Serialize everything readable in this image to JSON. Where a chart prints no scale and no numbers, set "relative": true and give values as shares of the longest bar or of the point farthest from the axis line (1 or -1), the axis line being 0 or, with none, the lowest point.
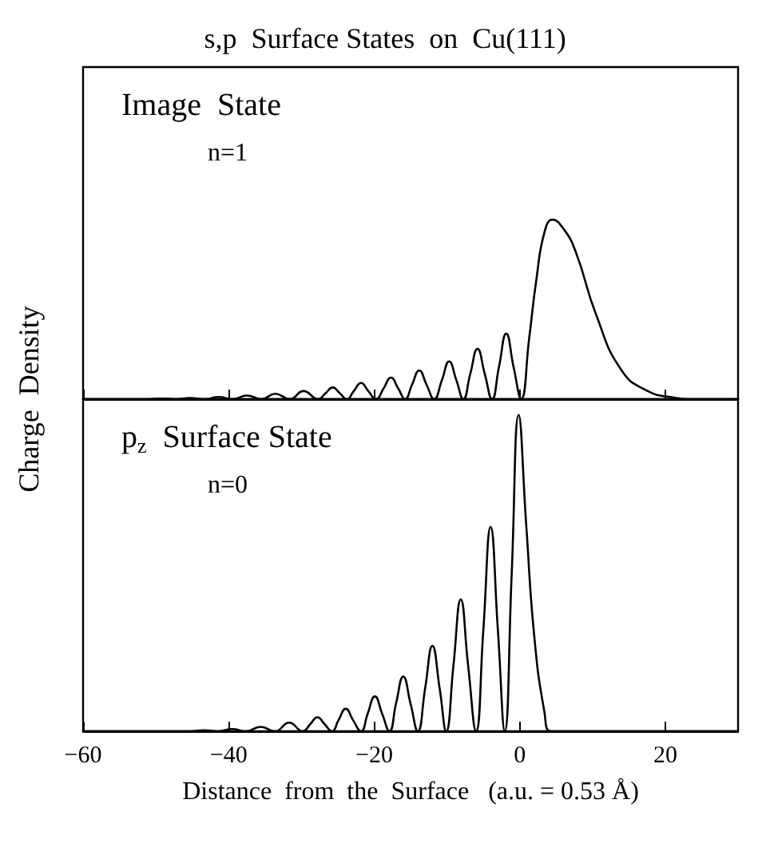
{
  "chart_data": [
    {
      "type": "line",
      "title": "s,p  Surface States  on  Cu(111)",
      "ylabel": "Charge  Density",
      "annotations": [
        "Image  State",
        "n=1"
      ],
      "relative": true,
      "color": "#000000",
      "marker": "none",
      "line_style": "solid",
      "grid": false,
      "tick_labels": false,
      "xlim": [
        -60,
        30
      ],
      "xticks": [
        -60,
        -40,
        -20,
        0,
        20
      ],
      "x": [
        -60,
        -51,
        -49,
        -47.2,
        -45.3,
        -43.3,
        -41.4,
        -39.4,
        -37.5,
        -35.5,
        -33.6,
        -31.6,
        -29.7,
        -27.7,
        -26.7,
        -25.7,
        -24.7,
        -23.75,
        -22.8,
        -21.8,
        -20.8,
        -19.75,
        -18.7,
        -17.7,
        -16.7,
        -15.75,
        -14.8,
        -13.8,
        -12.8,
        -11.75,
        -10.7,
        -9.7,
        -8.7,
        -7.75,
        -6.8,
        -5.8,
        -4.8,
        -3.8,
        -2.85,
        -1.85,
        -0.85,
        0.2,
        1.3,
        2.3,
        3.4,
        4.5,
        6,
        7.7,
        10.5,
        14,
        17.6,
        21,
        24,
        30
      ],
      "values": [
        0,
        0,
        0.003,
        0,
        0.006,
        0,
        0.012,
        0,
        0.02,
        0,
        0.03,
        0,
        0.045,
        0,
        0.032,
        0.065,
        0.032,
        0,
        0.045,
        0.09,
        0.045,
        0,
        0.06,
        0.12,
        0.06,
        0,
        0.08,
        0.16,
        0.08,
        0,
        0.105,
        0.21,
        0.105,
        0,
        0.14,
        0.28,
        0.14,
        0,
        0.18,
        0.365,
        0.18,
        0,
        0.34,
        0.67,
        0.93,
        1,
        0.95,
        0.82,
        0.47,
        0.16,
        0.045,
        0.01,
        0,
        0
      ]
    },
    {
      "type": "line",
      "xlabel": "Distance  from  the  Surface   (a.u. = 0.53 Å)",
      "annotations": [
        "p$_{z}$  Surface State",
        "n=0"
      ],
      "relative": true,
      "color": "#000000",
      "marker": "none",
      "line_style": "solid",
      "grid": false,
      "tick_labels": "x",
      "xlim": [
        -60,
        30
      ],
      "xticks": [
        -60,
        -40,
        -20,
        0,
        20
      ],
      "x": [
        -60,
        -47.2,
        -45.3,
        -43.4,
        -41.4,
        -39.5,
        -37.6,
        -35.6,
        -33.6,
        -31.7,
        -29.8,
        -28.8,
        -27.8,
        -26.8,
        -25.8,
        -24.9,
        -23.9,
        -22.9,
        -21.8,
        -20.9,
        -19.9,
        -18.9,
        -17.9,
        -17,
        -16,
        -15,
        -14,
        -13,
        -12,
        -11,
        -10.1,
        -9.1,
        -8.1,
        -7.1,
        -6,
        -5,
        -4,
        -3,
        -2.05,
        -1.1,
        -0.15,
        0.9,
        2,
        3.4,
        4.3,
        30
      ],
      "values": [
        0,
        0,
        0,
        0.003,
        0,
        0.007,
        0,
        0.014,
        0,
        0.027,
        0,
        0.022,
        0.044,
        0.022,
        0,
        0.035,
        0.071,
        0.035,
        0,
        0.055,
        0.11,
        0.055,
        0,
        0.087,
        0.173,
        0.087,
        0,
        0.135,
        0.27,
        0.135,
        0,
        0.21,
        0.417,
        0.21,
        0,
        0.32,
        0.646,
        0.32,
        0,
        0.5,
        1,
        0.65,
        0.3,
        0.06,
        0,
        0
      ]
    }
  ]
}
